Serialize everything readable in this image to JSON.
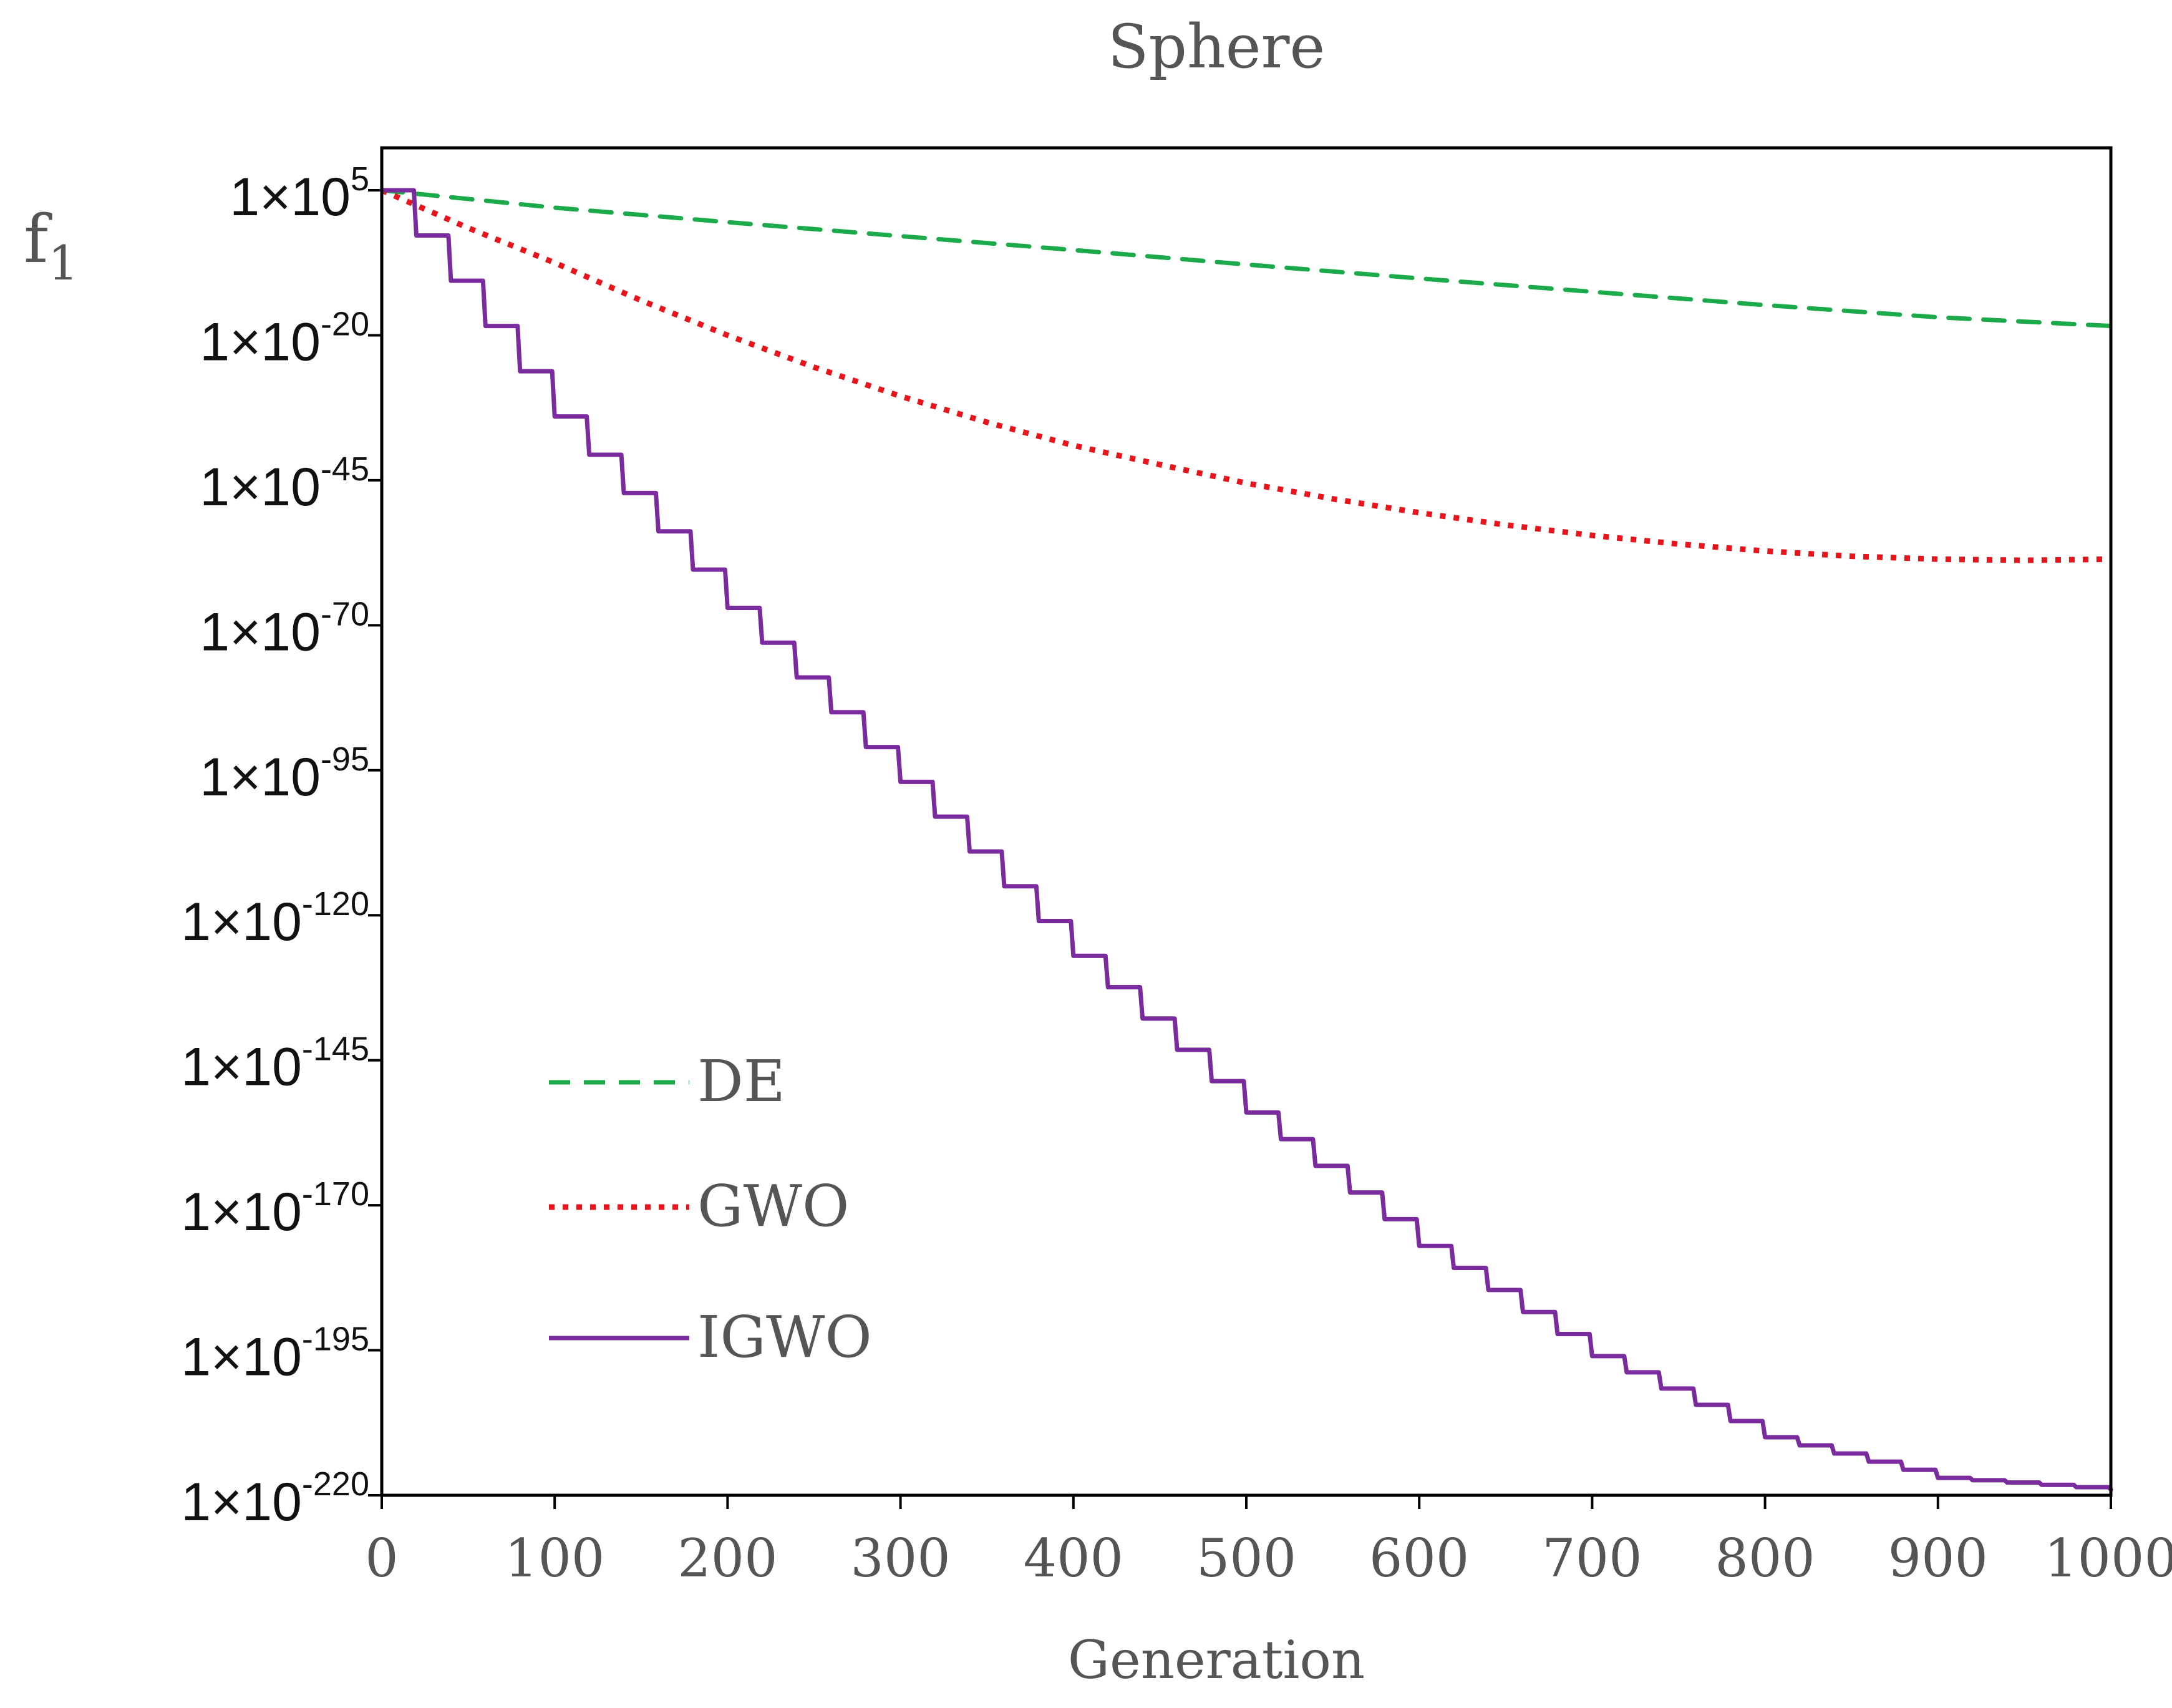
{
  "chart_data": {
    "type": "line",
    "title": "Sphere",
    "xlabel": "Generation",
    "ylabel": {
      "base": "f",
      "sub": "1"
    },
    "xlim": [
      0,
      1000
    ],
    "x_ticks": [
      {
        "value": 0,
        "label": "0"
      },
      {
        "value": 100,
        "label": "100"
      },
      {
        "value": 200,
        "label": "200"
      },
      {
        "value": 300,
        "label": "300"
      },
      {
        "value": 400,
        "label": "400"
      },
      {
        "value": 500,
        "label": "500"
      },
      {
        "value": 600,
        "label": "600"
      },
      {
        "value": 700,
        "label": "700"
      },
      {
        "value": 800,
        "label": "800"
      },
      {
        "value": 900,
        "label": "900"
      },
      {
        "value": 1000,
        "label": "1000"
      }
    ],
    "y_scale": "log10",
    "ylim_exponent": [
      -220,
      10
    ],
    "y_ticks": [
      {
        "exp": 5,
        "mantissa": "1×10",
        "power": "5"
      },
      {
        "exp": -20,
        "mantissa": "1×10",
        "power": "-20"
      },
      {
        "exp": -45,
        "mantissa": "1×10",
        "power": "-45"
      },
      {
        "exp": -70,
        "mantissa": "1×10",
        "power": "-70"
      },
      {
        "exp": -95,
        "mantissa": "1×10",
        "power": "-95"
      },
      {
        "exp": -120,
        "mantissa": "1×10",
        "power": "-120"
      },
      {
        "exp": -145,
        "mantissa": "1×10",
        "power": "-145"
      },
      {
        "exp": -170,
        "mantissa": "1×10",
        "power": "-170"
      },
      {
        "exp": -195,
        "mantissa": "1×10",
        "power": "-195"
      },
      {
        "exp": -220,
        "mantissa": "1×10",
        "power": "-220"
      }
    ],
    "legend_position": "lower-left",
    "series": [
      {
        "name": "DE",
        "color": "#1aaa4a",
        "style": "dashed",
        "x": [
          0,
          100,
          200,
          300,
          400,
          500,
          600,
          700,
          800,
          900,
          1000
        ],
        "log10_y": [
          5,
          2,
          -0.5,
          -2.9,
          -5.3,
          -7.8,
          -10.2,
          -12.5,
          -14.8,
          -16.9,
          -18.4
        ]
      },
      {
        "name": "GWO",
        "color": "#e8141b",
        "style": "dotted",
        "x": [
          0,
          50,
          100,
          150,
          200,
          250,
          300,
          350,
          400,
          450,
          500,
          550,
          600,
          650,
          700,
          750,
          800,
          850,
          900,
          950,
          1000
        ],
        "log10_y": [
          5,
          -1.5,
          -7.5,
          -14,
          -20,
          -25.5,
          -30.5,
          -35,
          -39,
          -42.3,
          -45.5,
          -48.2,
          -50.6,
          -52.7,
          -54.5,
          -56,
          -57.2,
          -58.1,
          -58.6,
          -58.8,
          -58.6
        ]
      },
      {
        "name": "IGWO",
        "color": "#7a2c9e",
        "style": "solid",
        "step": 20,
        "x": [
          0,
          100,
          200,
          300,
          400,
          500,
          600,
          700,
          800,
          900,
          1000
        ],
        "log10_y": [
          5,
          -34,
          -67,
          -97,
          -127,
          -154,
          -177,
          -196,
          -210,
          -217,
          -219
        ]
      }
    ]
  }
}
